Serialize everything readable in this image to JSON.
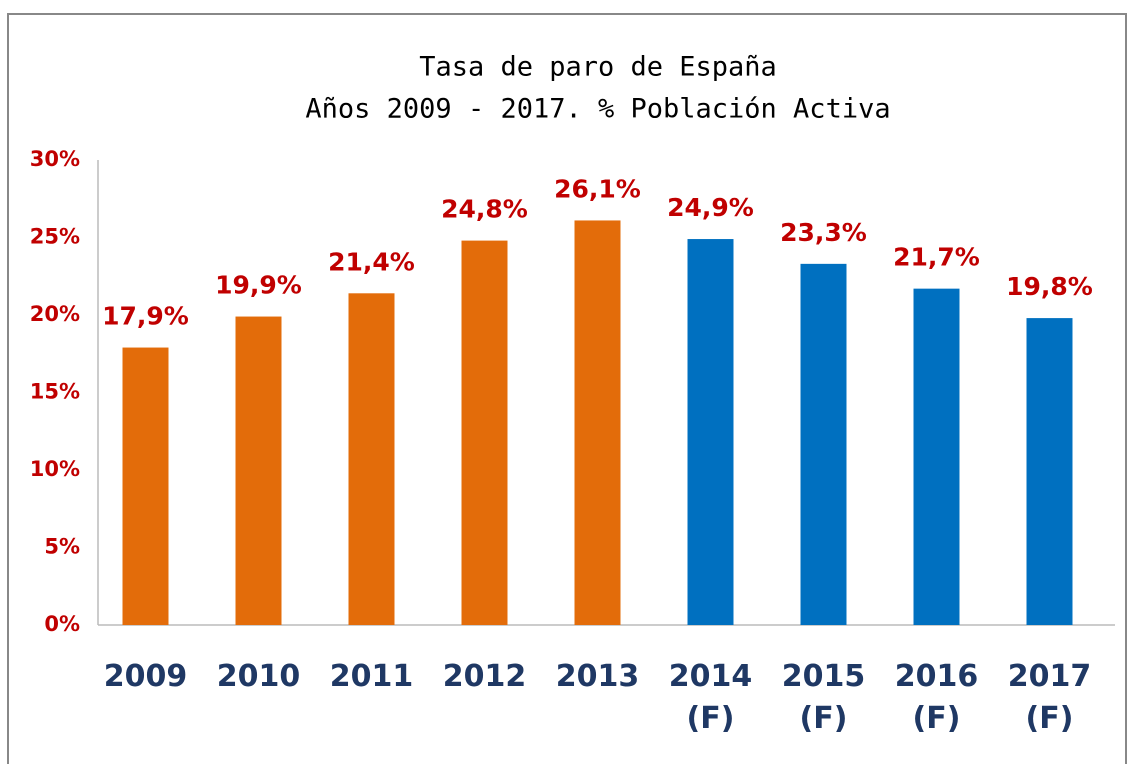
{
  "chart_data": {
    "type": "bar",
    "title": "Tasa de paro de España",
    "subtitle": "Años 2009 - 2017. % Población Activa",
    "categories": [
      "2009",
      "2010",
      "2011",
      "2012",
      "2013",
      "2014 (F)",
      "2015 (F)",
      "2016 (F)",
      "2017 (F)"
    ],
    "values": [
      17.9,
      19.9,
      21.4,
      24.8,
      26.1,
      24.9,
      23.3,
      21.7,
      19.8
    ],
    "value_labels": [
      "17,9%",
      "19,9%",
      "21,4%",
      "24,8%",
      "26,1%",
      "24,9%",
      "23,3%",
      "21,7%",
      "19,8%"
    ],
    "colors": [
      "#e36c0a",
      "#e36c0a",
      "#e36c0a",
      "#e36c0a",
      "#e36c0a",
      "#0070c0",
      "#0070c0",
      "#0070c0",
      "#0070c0"
    ],
    "ylim": [
      0,
      30
    ],
    "yticks": [
      {
        "value": 0,
        "label": "0%"
      },
      {
        "value": 5,
        "label": "5%"
      },
      {
        "value": 10,
        "label": "10%"
      },
      {
        "value": 15,
        "label": "15%"
      },
      {
        "value": 20,
        "label": "20%"
      },
      {
        "value": 25,
        "label": "25%"
      },
      {
        "value": 30,
        "label": "30%"
      }
    ],
    "grid": false
  }
}
